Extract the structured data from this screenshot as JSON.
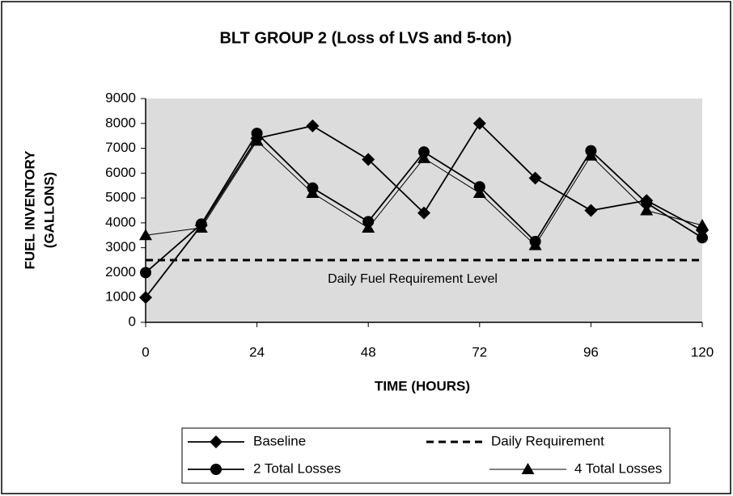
{
  "chart_data": {
    "type": "line",
    "title": "BLT GROUP 2 (Loss of LVS and 5-ton)",
    "xlabel": "TIME (HOURS)",
    "ylabel": [
      "FUEL INVENTORY",
      "(GALLONS)"
    ],
    "annotation": "Daily Fuel Requirement Level",
    "x": [
      0,
      12,
      24,
      36,
      48,
      60,
      72,
      84,
      96,
      108,
      120
    ],
    "series": [
      {
        "name": "Baseline",
        "color": "#000000",
        "marker": "diamond",
        "values": [
          1000,
          3900,
          7400,
          7900,
          6550,
          4400,
          8000,
          5800,
          4500,
          4900,
          3700
        ]
      },
      {
        "name": "Daily Requirement",
        "color": "#000000",
        "dash": true,
        "values": [
          2500,
          2500,
          2500,
          2500,
          2500,
          2500,
          2500,
          2500,
          2500,
          2500,
          2500
        ]
      },
      {
        "name": "2 Total Losses",
        "color": "#000000",
        "marker": "circle",
        "values": [
          2000,
          3950,
          7600,
          5400,
          4050,
          6850,
          5450,
          3250,
          6900,
          4800,
          3400
        ]
      },
      {
        "name": "4 Total Losses",
        "color": "#000000",
        "marker": "triangle",
        "values": [
          3500,
          3800,
          7300,
          5200,
          3800,
          6600,
          5200,
          3100,
          6700,
          4500,
          3900
        ]
      }
    ],
    "xlim": [
      0,
      120
    ],
    "xticks": [
      0,
      24,
      48,
      72,
      96,
      120
    ],
    "ylim": [
      0,
      9000
    ],
    "yticks": [
      0,
      1000,
      2000,
      3000,
      4000,
      5000,
      6000,
      7000,
      8000,
      9000
    ],
    "grid": false
  }
}
